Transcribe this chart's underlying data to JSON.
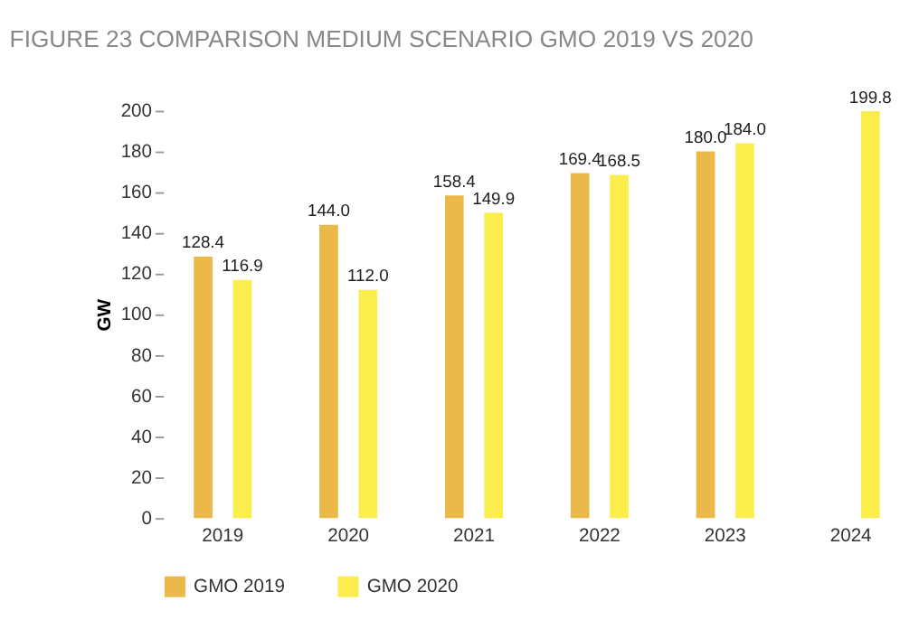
{
  "chart_data": {
    "type": "bar",
    "title": "FIGURE 23 COMPARISON MEDIUM SCENARIO GMO 2019 VS 2020",
    "ylabel": "GW",
    "categories": [
      "2019",
      "2020",
      "2021",
      "2022",
      "2023",
      "2024"
    ],
    "series": [
      {
        "name": "GMO 2019",
        "color": "#ebb84a",
        "values": [
          128.4,
          144.0,
          158.4,
          169.4,
          180.0,
          null
        ],
        "value_labels": [
          "128.4",
          "144.0",
          "158.4",
          "169.4",
          "180.0",
          null
        ]
      },
      {
        "name": "GMO 2020",
        "color": "#fbee4c",
        "values": [
          116.9,
          112.0,
          149.9,
          168.5,
          184.0,
          199.8
        ],
        "value_labels": [
          "116.9",
          "112.0",
          "149.9",
          "168.5",
          "184.0",
          "199.8"
        ]
      }
    ],
    "ylim": [
      0,
      200
    ],
    "yticks": [
      0,
      20,
      40,
      60,
      80,
      100,
      120,
      140,
      160,
      180,
      200
    ],
    "grid": false,
    "legend": "bottom"
  }
}
